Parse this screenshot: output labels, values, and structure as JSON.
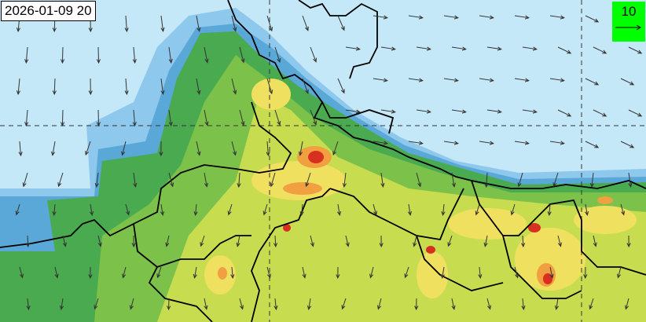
{
  "timestamp": "2026-01-09 20",
  "wind_legend": {
    "value": "10",
    "background": "#00ff00"
  },
  "colors": {
    "background": "#c5e8f8",
    "low": "#8ec8ec",
    "mid_blue": "#5aa8d8",
    "green_dark": "#4aaa50",
    "green": "#7cc24a",
    "yellow_green": "#c8dc50",
    "yellow": "#f0e060",
    "orange": "#f0a040",
    "red": "#d83020"
  }
}
